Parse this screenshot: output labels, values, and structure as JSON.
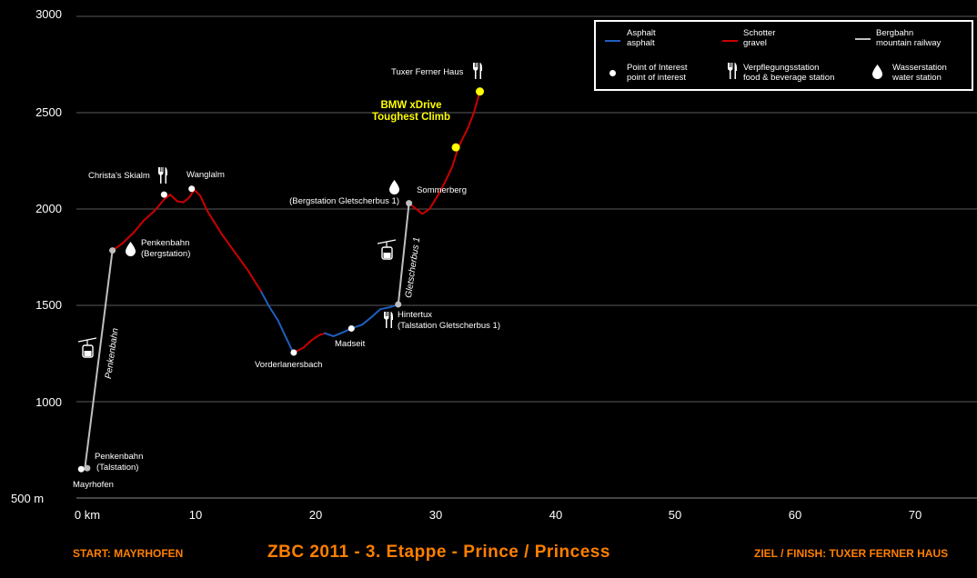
{
  "chart_data": {
    "type": "line",
    "title": "ZBC 2011 - 3. Etappe - Prince / Princess",
    "xlabel": "km",
    "ylabel": "m",
    "xlim": [
      0,
      75
    ],
    "ylim": [
      500,
      3000
    ],
    "x_ticks": [
      "0 km",
      "10",
      "20",
      "30",
      "40",
      "50",
      "60",
      "70"
    ],
    "y_ticks": [
      "3000",
      "2500",
      "2000",
      "1500",
      "1000",
      "500 m"
    ],
    "grid": "horizontal",
    "legend_placement": "top-right",
    "series": [
      {
        "name": "Bergbahn",
        "color": "#bfbfbf",
        "points": [
          [
            0.7,
            650
          ],
          [
            3.0,
            1785
          ]
        ]
      },
      {
        "name": "Schotter",
        "color": "#cc0000",
        "points": [
          [
            3.0,
            1785
          ],
          [
            3.8,
            1820
          ],
          [
            4.8,
            1880
          ],
          [
            5.6,
            1940
          ],
          [
            6.5,
            1990
          ],
          [
            7.3,
            2050
          ],
          [
            7.8,
            2075
          ],
          [
            8.4,
            2040
          ],
          [
            8.9,
            2035
          ],
          [
            9.4,
            2060
          ],
          [
            9.8,
            2100
          ],
          [
            10.3,
            2070
          ],
          [
            10.9,
            1990
          ],
          [
            11.5,
            1930
          ],
          [
            12.1,
            1870
          ],
          [
            12.8,
            1810
          ],
          [
            13.6,
            1740
          ],
          [
            14.3,
            1680
          ],
          [
            14.9,
            1620
          ],
          [
            15.4,
            1570
          ]
        ]
      },
      {
        "name": "Asphalt",
        "color": "#1f5fbf",
        "points": [
          [
            15.4,
            1570
          ],
          [
            16.0,
            1500
          ],
          [
            16.8,
            1420
          ],
          [
            17.4,
            1340
          ],
          [
            17.9,
            1275
          ],
          [
            18.1,
            1255
          ]
        ]
      },
      {
        "name": "Schotter",
        "color": "#cc0000",
        "points": [
          [
            18.1,
            1255
          ],
          [
            18.9,
            1280
          ],
          [
            19.6,
            1320
          ],
          [
            20.2,
            1345
          ],
          [
            20.7,
            1355
          ]
        ]
      },
      {
        "name": "Asphalt",
        "color": "#1f5fbf",
        "points": [
          [
            20.7,
            1355
          ],
          [
            21.4,
            1340
          ],
          [
            22.2,
            1360
          ],
          [
            22.9,
            1380
          ],
          [
            23.8,
            1400
          ],
          [
            24.6,
            1440
          ],
          [
            25.3,
            1480
          ],
          [
            26.1,
            1490
          ],
          [
            26.8,
            1505
          ]
        ]
      },
      {
        "name": "Bergbahn",
        "color": "#bfbfbf",
        "points": [
          [
            26.8,
            1505
          ],
          [
            27.7,
            2030
          ]
        ]
      },
      {
        "name": "Schotter",
        "color": "#cc0000",
        "points": [
          [
            27.7,
            2030
          ],
          [
            28.3,
            2000
          ],
          [
            28.8,
            1975
          ],
          [
            29.4,
            2000
          ],
          [
            30.1,
            2070
          ],
          [
            30.7,
            2140
          ],
          [
            31.3,
            2220
          ],
          [
            31.8,
            2320
          ],
          [
            32.6,
            2420
          ],
          [
            33.1,
            2500
          ],
          [
            33.6,
            2610
          ]
        ]
      }
    ],
    "points_of_interest": [
      {
        "x": 0.4,
        "y": 650,
        "color": "#ffffff"
      },
      {
        "x": 0.9,
        "y": 655,
        "color": "#bfbfbf"
      },
      {
        "x": 3.0,
        "y": 1785,
        "color": "#bfbfbf"
      },
      {
        "x": 7.3,
        "y": 2075,
        "color": "#ffffff"
      },
      {
        "x": 9.6,
        "y": 2105,
        "color": "#ffffff"
      },
      {
        "x": 18.1,
        "y": 1255,
        "color": "#ffffff"
      },
      {
        "x": 22.9,
        "y": 1380,
        "color": "#ffffff"
      },
      {
        "x": 26.8,
        "y": 1505,
        "color": "#bfbfbf"
      },
      {
        "x": 27.7,
        "y": 2030,
        "color": "#bfbfbf"
      },
      {
        "x": 31.6,
        "y": 2320,
        "color": "#ffff00"
      },
      {
        "x": 33.6,
        "y": 2610,
        "color": "#ffff00"
      }
    ],
    "annotations": {
      "mayrhofen": "Mayrhofen",
      "penkenbahn_tal_1": "Penkenbahn",
      "penkenbahn_tal_2": "(Talstation)",
      "penkenbahn_berg_1": "Penkenbahn",
      "penkenbahn_berg_2": "(Bergstation)",
      "penkenbahn_lift": "Penkenbahn",
      "christas": "Christa's Skialm",
      "wanglalm": "Wanglalm",
      "vorderlanersbach": "Vorderlanersbach",
      "madseit": "Madseit",
      "hintertux_1": "Hintertux",
      "hintertux_2": "(Talstation Gletscherbus 1)",
      "gletscherbus_lift": "Gletscherbus 1",
      "sommerberg_1": "Sommerberg",
      "sommerberg_2": "(Bergstation Gletscherbus 1)",
      "tuxer": "Tuxer Ferner Haus",
      "climb_1": "BMW xDrive",
      "climb_2": "Toughest Climb"
    }
  },
  "legend": {
    "asphalt_1": "Asphalt",
    "asphalt_2": "asphalt",
    "asphalt_color": "#1f5fbf",
    "schotter_1": "Schotter",
    "schotter_2": "gravel",
    "schotter_color": "#cc0000",
    "bergbahn_1": "Bergbahn",
    "bergbahn_2": "mountain railway",
    "bergbahn_color": "#bfbfbf",
    "poi_1": "Point of Interest",
    "poi_2": "point of interest",
    "food_1": "Verpflegungsstation",
    "food_2": "food & beverage station",
    "water_1": "Wasserstation",
    "water_2": "water station"
  },
  "footer": {
    "start": "START:  MAYRHOFEN",
    "title": "ZBC 2011 - 3. Etappe - Prince / Princess",
    "finish": "ZIEL / FINISH:  TUXER FERNER HAUS",
    "color": "#ff7f00"
  },
  "icons": [
    "fork-knife-icon",
    "water-drop-icon",
    "gondola-icon"
  ]
}
